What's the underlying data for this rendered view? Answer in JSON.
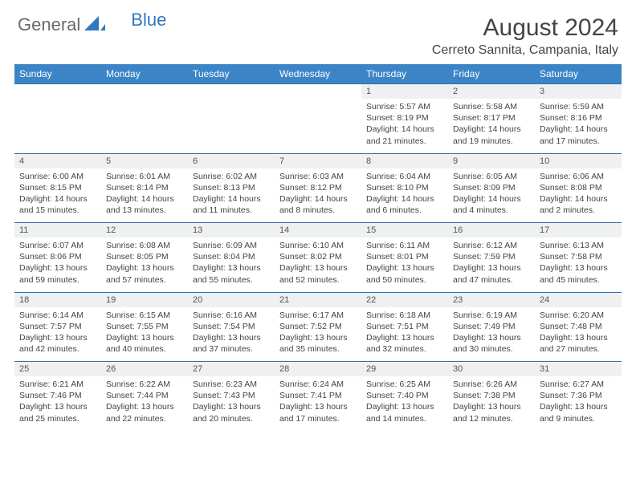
{
  "brand": {
    "part1": "General",
    "part2": "Blue"
  },
  "title": "August 2024",
  "location": "Cerreto Sannita, Campania, Italy",
  "colors": {
    "header_bg": "#3b85c6",
    "daynum_bg": "#eef0f1",
    "border": "#2f6fa8",
    "text": "#444444",
    "brand_gray": "#6a6a6a",
    "brand_blue": "#2f78bd"
  },
  "weekdays": [
    "Sunday",
    "Monday",
    "Tuesday",
    "Wednesday",
    "Thursday",
    "Friday",
    "Saturday"
  ],
  "weeks": [
    [
      null,
      null,
      null,
      null,
      {
        "n": "1",
        "sr": "5:57 AM",
        "ss": "8:19 PM",
        "dl": "14 hours and 21 minutes."
      },
      {
        "n": "2",
        "sr": "5:58 AM",
        "ss": "8:17 PM",
        "dl": "14 hours and 19 minutes."
      },
      {
        "n": "3",
        "sr": "5:59 AM",
        "ss": "8:16 PM",
        "dl": "14 hours and 17 minutes."
      }
    ],
    [
      {
        "n": "4",
        "sr": "6:00 AM",
        "ss": "8:15 PM",
        "dl": "14 hours and 15 minutes."
      },
      {
        "n": "5",
        "sr": "6:01 AM",
        "ss": "8:14 PM",
        "dl": "14 hours and 13 minutes."
      },
      {
        "n": "6",
        "sr": "6:02 AM",
        "ss": "8:13 PM",
        "dl": "14 hours and 11 minutes."
      },
      {
        "n": "7",
        "sr": "6:03 AM",
        "ss": "8:12 PM",
        "dl": "14 hours and 8 minutes."
      },
      {
        "n": "8",
        "sr": "6:04 AM",
        "ss": "8:10 PM",
        "dl": "14 hours and 6 minutes."
      },
      {
        "n": "9",
        "sr": "6:05 AM",
        "ss": "8:09 PM",
        "dl": "14 hours and 4 minutes."
      },
      {
        "n": "10",
        "sr": "6:06 AM",
        "ss": "8:08 PM",
        "dl": "14 hours and 2 minutes."
      }
    ],
    [
      {
        "n": "11",
        "sr": "6:07 AM",
        "ss": "8:06 PM",
        "dl": "13 hours and 59 minutes."
      },
      {
        "n": "12",
        "sr": "6:08 AM",
        "ss": "8:05 PM",
        "dl": "13 hours and 57 minutes."
      },
      {
        "n": "13",
        "sr": "6:09 AM",
        "ss": "8:04 PM",
        "dl": "13 hours and 55 minutes."
      },
      {
        "n": "14",
        "sr": "6:10 AM",
        "ss": "8:02 PM",
        "dl": "13 hours and 52 minutes."
      },
      {
        "n": "15",
        "sr": "6:11 AM",
        "ss": "8:01 PM",
        "dl": "13 hours and 50 minutes."
      },
      {
        "n": "16",
        "sr": "6:12 AM",
        "ss": "7:59 PM",
        "dl": "13 hours and 47 minutes."
      },
      {
        "n": "17",
        "sr": "6:13 AM",
        "ss": "7:58 PM",
        "dl": "13 hours and 45 minutes."
      }
    ],
    [
      {
        "n": "18",
        "sr": "6:14 AM",
        "ss": "7:57 PM",
        "dl": "13 hours and 42 minutes."
      },
      {
        "n": "19",
        "sr": "6:15 AM",
        "ss": "7:55 PM",
        "dl": "13 hours and 40 minutes."
      },
      {
        "n": "20",
        "sr": "6:16 AM",
        "ss": "7:54 PM",
        "dl": "13 hours and 37 minutes."
      },
      {
        "n": "21",
        "sr": "6:17 AM",
        "ss": "7:52 PM",
        "dl": "13 hours and 35 minutes."
      },
      {
        "n": "22",
        "sr": "6:18 AM",
        "ss": "7:51 PM",
        "dl": "13 hours and 32 minutes."
      },
      {
        "n": "23",
        "sr": "6:19 AM",
        "ss": "7:49 PM",
        "dl": "13 hours and 30 minutes."
      },
      {
        "n": "24",
        "sr": "6:20 AM",
        "ss": "7:48 PM",
        "dl": "13 hours and 27 minutes."
      }
    ],
    [
      {
        "n": "25",
        "sr": "6:21 AM",
        "ss": "7:46 PM",
        "dl": "13 hours and 25 minutes."
      },
      {
        "n": "26",
        "sr": "6:22 AM",
        "ss": "7:44 PM",
        "dl": "13 hours and 22 minutes."
      },
      {
        "n": "27",
        "sr": "6:23 AM",
        "ss": "7:43 PM",
        "dl": "13 hours and 20 minutes."
      },
      {
        "n": "28",
        "sr": "6:24 AM",
        "ss": "7:41 PM",
        "dl": "13 hours and 17 minutes."
      },
      {
        "n": "29",
        "sr": "6:25 AM",
        "ss": "7:40 PM",
        "dl": "13 hours and 14 minutes."
      },
      {
        "n": "30",
        "sr": "6:26 AM",
        "ss": "7:38 PM",
        "dl": "13 hours and 12 minutes."
      },
      {
        "n": "31",
        "sr": "6:27 AM",
        "ss": "7:36 PM",
        "dl": "13 hours and 9 minutes."
      }
    ]
  ],
  "labels": {
    "sunrise": "Sunrise:",
    "sunset": "Sunset:",
    "daylight": "Daylight:"
  }
}
